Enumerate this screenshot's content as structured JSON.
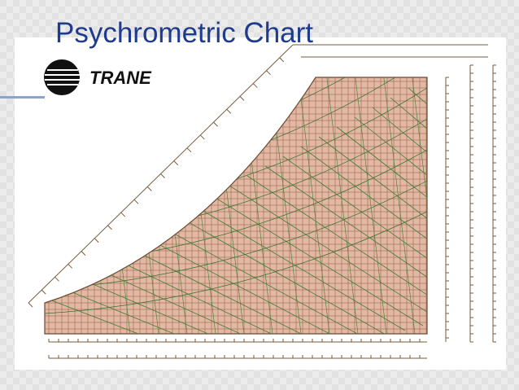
{
  "header": {
    "title": "Psychrometric Chart"
  },
  "logo": {
    "text": "TRANE"
  }
}
